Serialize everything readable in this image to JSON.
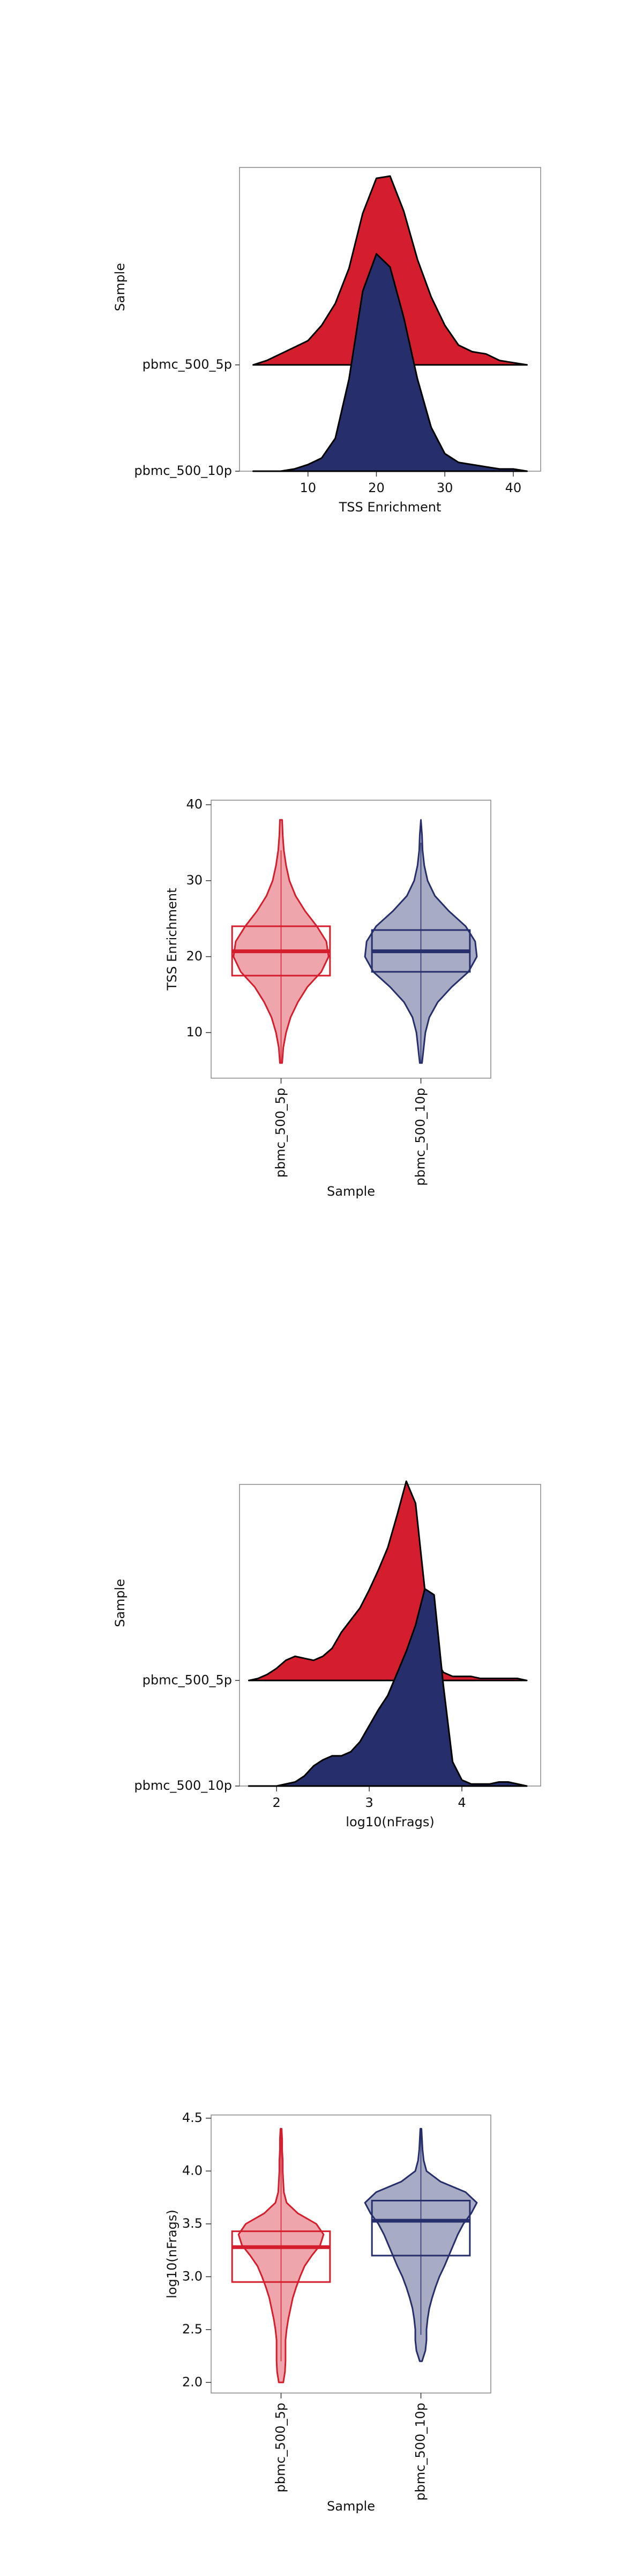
{
  "chart_data": [
    {
      "type": "ridgeline",
      "xlabel": "TSS Enrichment",
      "ylabel": "Sample",
      "x": [
        2,
        4,
        6,
        8,
        10,
        12,
        14,
        16,
        18,
        20,
        22,
        24,
        26,
        28,
        30,
        32,
        34,
        36,
        38,
        40,
        42
      ],
      "series": [
        {
          "name": "pbmc_500_5p",
          "color": "#d51e2d",
          "values": [
            0,
            0.02,
            0.05,
            0.08,
            0.11,
            0.18,
            0.28,
            0.44,
            0.69,
            0.85,
            0.86,
            0.7,
            0.48,
            0.31,
            0.18,
            0.09,
            0.06,
            0.05,
            0.02,
            0.01,
            0
          ]
        },
        {
          "name": "pbmc_500_10p",
          "color": "#262e6b",
          "values": [
            0,
            0,
            0,
            0.01,
            0.03,
            0.06,
            0.15,
            0.42,
            0.82,
            0.99,
            0.93,
            0.7,
            0.42,
            0.2,
            0.08,
            0.04,
            0.03,
            0.02,
            0.01,
            0.01,
            0
          ]
        }
      ],
      "xlim": [
        0,
        44
      ],
      "xticks": [
        10,
        20,
        30,
        40
      ]
    },
    {
      "type": "violin",
      "xlabel": "Sample",
      "ylabel": "TSS Enrichment",
      "y": [
        6,
        8,
        10,
        12,
        14,
        16,
        18,
        20,
        22,
        24,
        26,
        28,
        30,
        32,
        34,
        36,
        38
      ],
      "series": [
        {
          "name": "pbmc_500_5p",
          "color": "#d51e2d",
          "widths": [
            0.02,
            0.04,
            0.09,
            0.17,
            0.3,
            0.47,
            0.72,
            0.85,
            0.81,
            0.64,
            0.43,
            0.26,
            0.15,
            0.09,
            0.05,
            0.03,
            0.02
          ],
          "box": {
            "min": 6,
            "q1": 17.5,
            "median": 20.7,
            "q3": 24,
            "max": 34
          }
        },
        {
          "name": "pbmc_500_10p",
          "color": "#262e6b",
          "widths": [
            0.02,
            0.05,
            0.08,
            0.15,
            0.3,
            0.55,
            0.85,
            1.0,
            0.97,
            0.8,
            0.5,
            0.25,
            0.12,
            0.06,
            0.03,
            0.02,
            0
          ],
          "box": {
            "min": 6,
            "q1": 18,
            "median": 20.7,
            "q3": 23.5,
            "max": 35
          }
        }
      ],
      "ylim": [
        4,
        40.6
      ],
      "yticks": [
        10,
        20,
        30,
        40
      ]
    },
    {
      "type": "ridgeline",
      "xlabel": "log10(nFrags)",
      "ylabel": "Sample",
      "x": [
        1.7,
        1.8,
        1.9,
        2.0,
        2.1,
        2.2,
        2.3,
        2.4,
        2.5,
        2.6,
        2.7,
        2.8,
        2.9,
        3.0,
        3.1,
        3.2,
        3.3,
        3.4,
        3.5,
        3.6,
        3.7,
        3.8,
        3.9,
        4.0,
        4.1,
        4.2,
        4.3,
        4.4,
        4.5,
        4.6,
        4.7
      ],
      "series": [
        {
          "name": "pbmc_500_5p",
          "color": "#d51e2d",
          "values": [
            0,
            0.01,
            0.03,
            0.06,
            0.1,
            0.12,
            0.11,
            0.1,
            0.12,
            0.16,
            0.24,
            0.3,
            0.36,
            0.45,
            0.55,
            0.66,
            0.82,
            0.99,
            0.88,
            0.45,
            0.12,
            0.04,
            0.02,
            0.02,
            0.02,
            0.01,
            0.01,
            0.01,
            0.01,
            0.01,
            0
          ]
        },
        {
          "name": "pbmc_500_10p",
          "color": "#262e6b",
          "values": [
            0,
            0,
            0,
            0,
            0.01,
            0.02,
            0.05,
            0.1,
            0.13,
            0.15,
            0.15,
            0.17,
            0.22,
            0.3,
            0.38,
            0.45,
            0.56,
            0.67,
            0.8,
            0.98,
            0.95,
            0.5,
            0.12,
            0.03,
            0.01,
            0.01,
            0.01,
            0.02,
            0.02,
            0.01,
            0
          ]
        }
      ],
      "xlim": [
        1.6,
        4.85
      ],
      "xticks": [
        2,
        3,
        4
      ]
    },
    {
      "type": "violin",
      "xlabel": "Sample",
      "ylabel": "log10(nFrags)",
      "y": [
        2.0,
        2.1,
        2.2,
        2.3,
        2.4,
        2.5,
        2.6,
        2.7,
        2.8,
        2.9,
        3.0,
        3.1,
        3.2,
        3.3,
        3.4,
        3.5,
        3.6,
        3.7,
        3.8,
        3.9,
        4.0,
        4.1,
        4.2,
        4.3,
        4.4
      ],
      "series": [
        {
          "name": "pbmc_500_5p",
          "color": "#d51e2d",
          "widths": [
            0.04,
            0.07,
            0.08,
            0.08,
            0.08,
            0.1,
            0.13,
            0.17,
            0.21,
            0.27,
            0.34,
            0.42,
            0.55,
            0.7,
            0.76,
            0.63,
            0.3,
            0.1,
            0.05,
            0.04,
            0.03,
            0.03,
            0.02,
            0.02,
            0.01
          ],
          "box": {
            "min": 2.2,
            "q1": 2.95,
            "median": 3.28,
            "q3": 3.43,
            "max": 4.4
          }
        },
        {
          "name": "pbmc_500_10p",
          "color": "#262e6b",
          "widths": [
            null,
            null,
            0.02,
            0.08,
            0.1,
            0.1,
            0.12,
            0.15,
            0.2,
            0.26,
            0.33,
            0.42,
            0.5,
            0.58,
            0.66,
            0.76,
            0.9,
            1.0,
            0.8,
            0.35,
            0.1,
            0.05,
            0.03,
            0.02,
            0.01
          ],
          "box": {
            "min": 2.45,
            "q1": 3.2,
            "median": 3.53,
            "q3": 3.72,
            "max": 4.4
          }
        }
      ],
      "ylim": [
        1.9,
        4.53
      ],
      "yticks": [
        {
          "value": 2,
          "label": "2.0"
        },
        2.5,
        {
          "value": 3,
          "label": "3.0"
        },
        3.5,
        {
          "value": 4,
          "label": "4.0"
        },
        4.5
      ]
    }
  ]
}
